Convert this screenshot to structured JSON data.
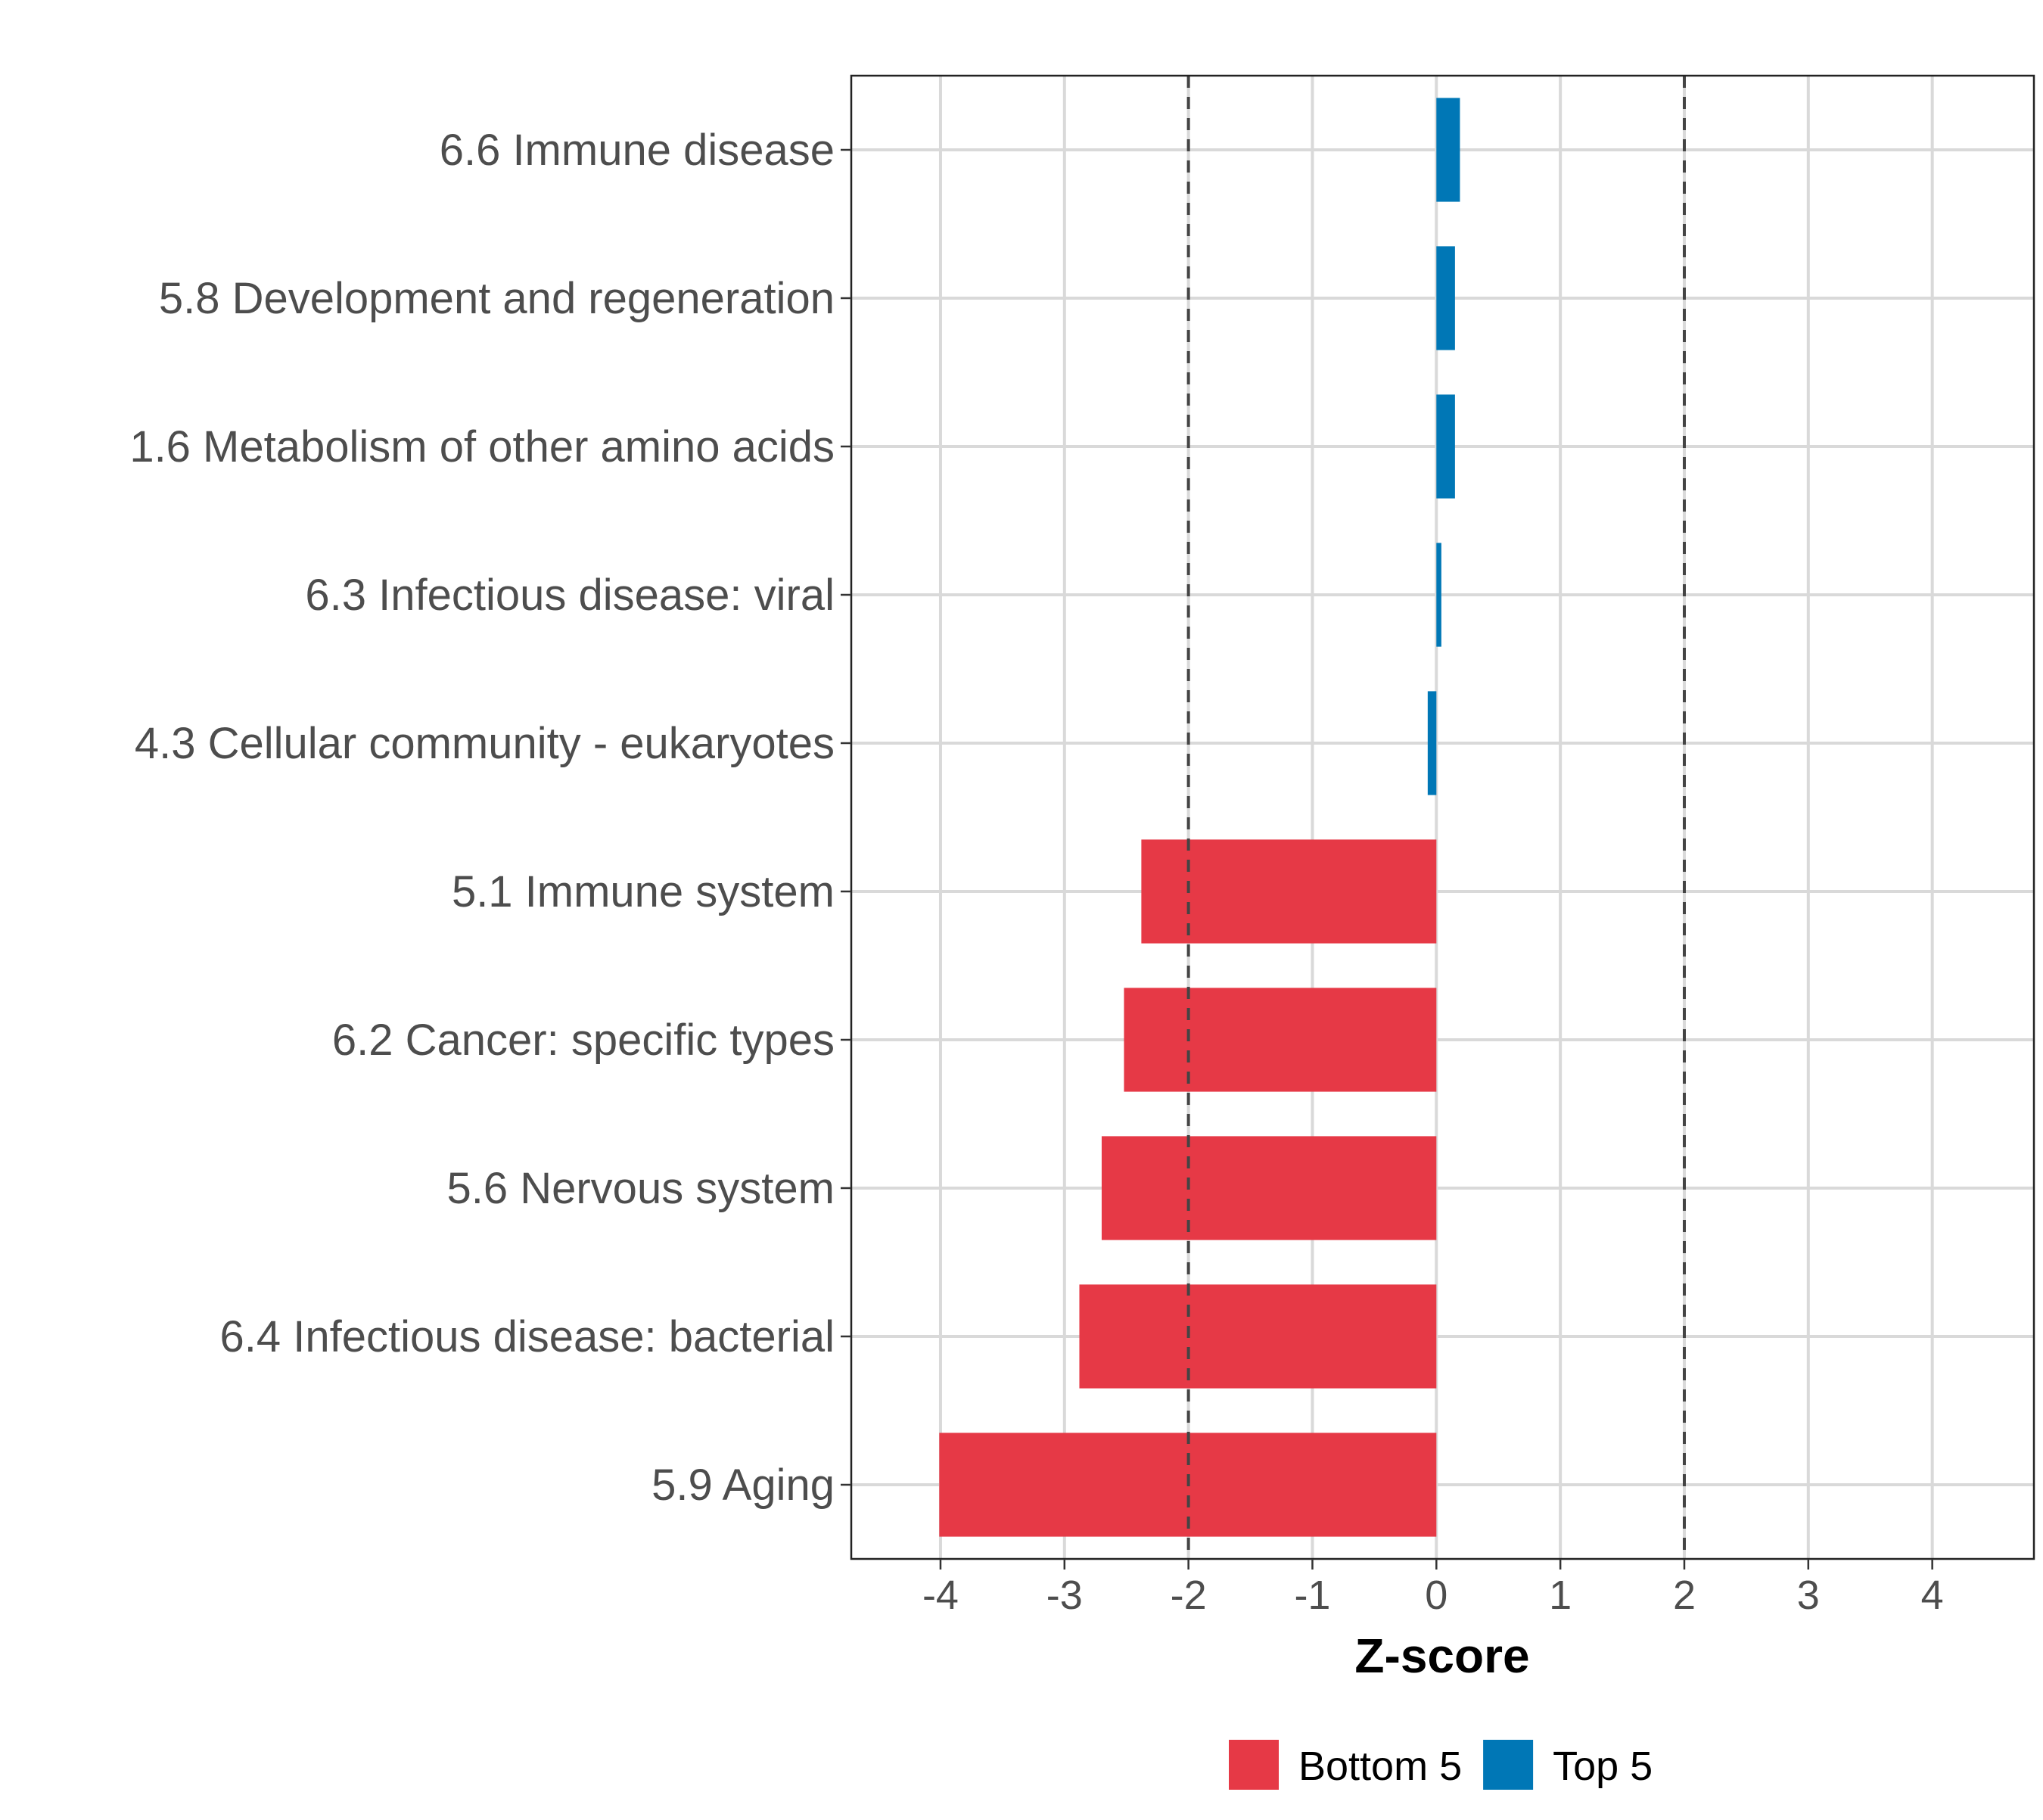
{
  "chart_data": {
    "type": "bar",
    "orientation": "horizontal",
    "title": "",
    "xlabel": "Z-score",
    "ylabel": "",
    "xlim": [
      -4.72,
      4.82
    ],
    "xticks": [
      -4,
      -3,
      -2,
      -1,
      0,
      1,
      2,
      3,
      4
    ],
    "xtick_labels": [
      "-4",
      "-3",
      "-2",
      "-1",
      "0",
      "1",
      "2",
      "3",
      "4"
    ],
    "grid": true,
    "reference_lines": [
      -2,
      2
    ],
    "categories": [
      "6.6 Immune disease",
      "5.8 Development and regeneration",
      "1.6 Metabolism of other amino acids",
      "6.3 Infectious disease: viral",
      "4.3 Cellular community - eukaryotes",
      "5.1 Immune system",
      "6.2 Cancer: specific types",
      "5.6 Nervous system",
      "6.4 Infectious disease: bacterial",
      "5.9 Aging"
    ],
    "values": [
      0.19,
      0.15,
      0.15,
      0.04,
      -0.07,
      -2.38,
      -2.52,
      -2.7,
      -2.88,
      -4.01
    ],
    "groups": [
      "Top 5",
      "Top 5",
      "Top 5",
      "Top 5",
      "Top 5",
      "Bottom 5",
      "Bottom 5",
      "Bottom 5",
      "Bottom 5",
      "Bottom 5"
    ],
    "legend": {
      "position": "bottom",
      "entries": [
        {
          "label": "Bottom 5",
          "color": "#E63946"
        },
        {
          "label": "Top 5",
          "color": "#0077B6"
        }
      ]
    }
  }
}
